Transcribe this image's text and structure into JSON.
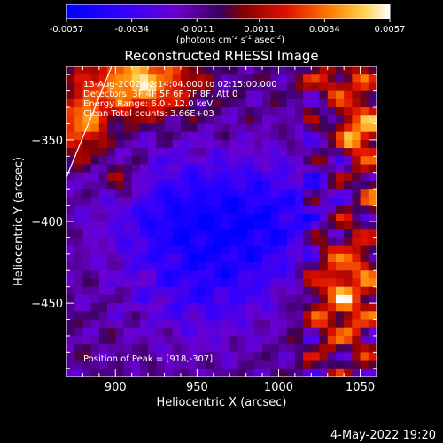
{
  "chart_data": {
    "type": "heatmap",
    "title": "Reconstructed RHESSI Image",
    "xlabel": "Heliocentric X (arcsec)",
    "ylabel": "Heliocentric Y (arcsec)",
    "xlim": [
      870,
      1060
    ],
    "ylim": [
      -495,
      -305
    ],
    "x_ticks": [
      900,
      950,
      1000,
      1050
    ],
    "y_ticks": [
      -350,
      -400,
      -450
    ],
    "colorbar": {
      "min": -0.0057,
      "max": 0.0057,
      "ticks": [
        "-0.0057",
        "-0.0034",
        "-0.0011",
        "0.0011",
        "0.0034",
        "0.0057"
      ],
      "unit_main": "(photons cm",
      "unit_sup1": "-2",
      "unit_mid1": " s",
      "unit_sup2": "-1",
      "unit_mid2": " asec",
      "unit_sup3": "-2",
      "unit_end": ")"
    },
    "annotations": [
      "13-Aug-2002 02:14:04.000 to 02:15:00.000",
      "Detectors: 3F 4F 5F 6F 7F 8F, Att 0",
      "Energy Range: 6.0 - 12.0 keV",
      "Clean    Total counts: 3.66E+03"
    ],
    "peak_label": "Position of Peak = [918,-307]",
    "bright_regions": [
      {
        "x": 915,
        "y": -315,
        "sigma_x": 22,
        "sigma_y": 14,
        "value": 0.0057
      },
      {
        "x": 880,
        "y": -340,
        "sigma_x": 10,
        "sigma_y": 14,
        "value": 0.0045
      },
      {
        "x": 1050,
        "y": -345,
        "sigma_x": 10,
        "sigma_y": 12,
        "value": 0.0052
      },
      {
        "x": 1040,
        "y": -315,
        "sigma_x": 16,
        "sigma_y": 8,
        "value": 0.003
      },
      {
        "x": 1040,
        "y": -440,
        "sigma_x": 16,
        "sigma_y": 28,
        "value": 0.0045
      },
      {
        "x": 905,
        "y": -375,
        "sigma_x": 8,
        "sigma_y": 8,
        "value": 0.0025
      },
      {
        "x": 1060,
        "y": -380,
        "sigma_x": 8,
        "sigma_y": 10,
        "value": 0.0025
      }
    ],
    "dim_regions": [
      {
        "x": 945,
        "y": -395,
        "sigma_x": 35,
        "sigma_y": 25,
        "value": -0.0034
      },
      {
        "x": 1000,
        "y": -400,
        "sigma_x": 25,
        "sigma_y": 25,
        "value": -0.0025
      },
      {
        "x": 955,
        "y": -440,
        "sigma_x": 30,
        "sigma_y": 25,
        "value": -0.0022
      }
    ]
  },
  "footer_timestamp": "4-May-2022 19:20"
}
